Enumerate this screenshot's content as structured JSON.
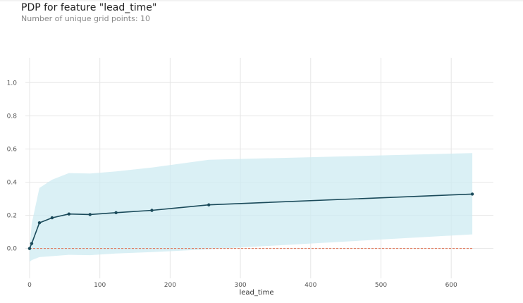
{
  "title": "PDP for feature \"lead_time\"",
  "subtitle": "Number of unique grid points: 10",
  "colors": {
    "line": "#1a4a5a",
    "band": "#cdebf2",
    "baseline": "#e07050",
    "grid": "#e6e6e6"
  },
  "chart_data": {
    "type": "line",
    "title": "PDP for feature \"lead_time\"",
    "subtitle": "Number of unique grid points: 10",
    "xlabel": "lead_time",
    "ylabel": "",
    "xlim": [
      -6,
      660
    ],
    "ylim": [
      -0.18,
      1.15
    ],
    "xticks": [
      0,
      100,
      200,
      300,
      400,
      500,
      600
    ],
    "yticks": [
      0.0,
      0.2,
      0.4,
      0.6,
      0.8,
      1.0
    ],
    "xtick_labels": [
      "0",
      "100",
      "200",
      "300",
      "400",
      "500",
      "600"
    ],
    "ytick_labels": [
      "0.0",
      "0.2",
      "0.4",
      "0.6",
      "0.8",
      "1.0"
    ],
    "grid": true,
    "series": [
      {
        "x": [
          0,
          3,
          14,
          32,
          56,
          86,
          123,
          174,
          255,
          630
        ],
        "values": [
          0.0,
          0.03,
          0.155,
          0.185,
          0.208,
          0.205,
          0.216,
          0.23,
          0.263,
          0.328
        ]
      }
    ],
    "band": {
      "x": [
        0,
        3,
        14,
        32,
        56,
        86,
        123,
        174,
        255,
        630
      ],
      "upper": [
        0.0,
        0.15,
        0.365,
        0.415,
        0.455,
        0.452,
        0.465,
        0.488,
        0.535,
        0.575
      ],
      "lower": [
        -0.08,
        -0.07,
        -0.052,
        -0.046,
        -0.038,
        -0.04,
        -0.03,
        -0.022,
        -0.005,
        0.085
      ]
    },
    "baseline": 0.0
  }
}
